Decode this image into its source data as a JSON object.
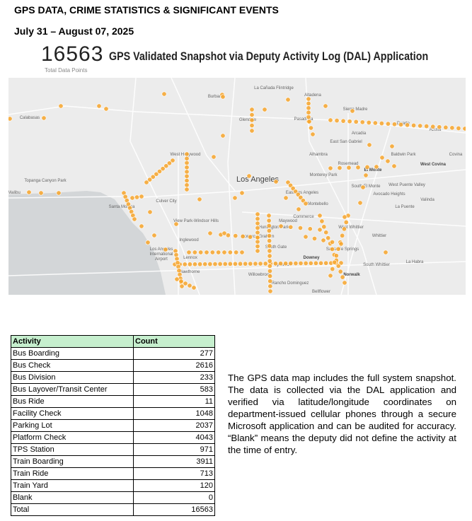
{
  "header": {
    "title": "GPS DATA, CRIME STATISTICS & SIGNIFICANT EVENTS",
    "date_range": "July 31 – August 07, 2025"
  },
  "kpi": {
    "value": "16563",
    "label": "Total Data Points",
    "title": "GPS Validated Snapshot via Deputy Activity Log (DAL) Application"
  },
  "map": {
    "dot_color": "#f7a52a",
    "places": [
      "Calabasas",
      "Burbank",
      "West Hollywood",
      "Culver City",
      "Santa Monica",
      "View Park-Windsor Hills",
      "Inglewood",
      "Los Angeles International Airport",
      "Lennox",
      "Hawthorne",
      "Topanga Canyon Park",
      "Malibu",
      "La Cañada Flintridge",
      "Altadena",
      "Glendale",
      "Pasadena",
      "Sierra Madre",
      "Duarte",
      "Arcadia",
      "Azusa",
      "East San Gabriel",
      "Alhambra",
      "Rosemead",
      "El Monte",
      "Baldwin Park",
      "West Covina",
      "Covina",
      "Los Angeles",
      "Monterey Park",
      "South El Monte",
      "West Puente Valley",
      "Avocado Heights",
      "Valinda",
      "East Los Angeles",
      "Montebello",
      "La Puente",
      "Commerce",
      "Maywood",
      "Huntington Park",
      "Florence-Graham",
      "West Whittier",
      "Whittier",
      "South Gate",
      "Santa Fe Springs",
      "Downey",
      "Lynwood",
      "South Whittier",
      "La Habra",
      "Norwalk",
      "Willowbrook",
      "Rancho Dominguez",
      "Bellflower"
    ]
  },
  "table": {
    "headers": [
      "Activity",
      "Count"
    ],
    "rows": [
      [
        "Bus Boarding",
        "277"
      ],
      [
        "Bus Check",
        "2616"
      ],
      [
        "Bus Division",
        "233"
      ],
      [
        "Bus Layover/Transit Center",
        "583"
      ],
      [
        "Bus Ride",
        "11"
      ],
      [
        "Facility Check",
        "1048"
      ],
      [
        "Parking Lot",
        "2037"
      ],
      [
        "Platform Check",
        "4043"
      ],
      [
        "TPS Station",
        "971"
      ],
      [
        "Train Boarding",
        "3911"
      ],
      [
        "Train Ride",
        "713"
      ],
      [
        "Train Yard",
        "120"
      ],
      [
        "Blank",
        "0"
      ]
    ],
    "total": [
      "Total",
      "16563"
    ]
  },
  "description": "The GPS data map includes the full system snapshot. The data is collected via the DAL application and verified via latitude/longitude coordinates on department-issued cellular phones through a secure Microsoft application and can be audited for accuracy. “Blank” means the deputy did not define the activity at the time of entry."
}
